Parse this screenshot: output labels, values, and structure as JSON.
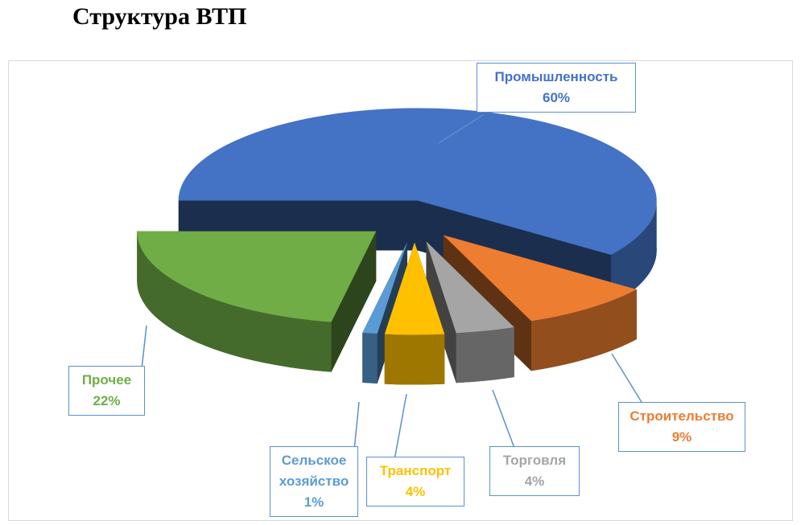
{
  "chart_data": {
    "type": "pie",
    "title": "Структура ВТП",
    "categories": [
      "Промышленность",
      "Строительство",
      "Торговля",
      "Транспорт",
      "Сельское хозяйство",
      "Прочее"
    ],
    "values": [
      60,
      9,
      4,
      4,
      1,
      22
    ],
    "value_labels": [
      "60%",
      "9%",
      "4%",
      "4%",
      "1%",
      "22%"
    ],
    "colors": [
      "#4472c4",
      "#ed7d31",
      "#a5a5a5",
      "#ffc000",
      "#5b9bd5",
      "#70ad47"
    ]
  }
}
